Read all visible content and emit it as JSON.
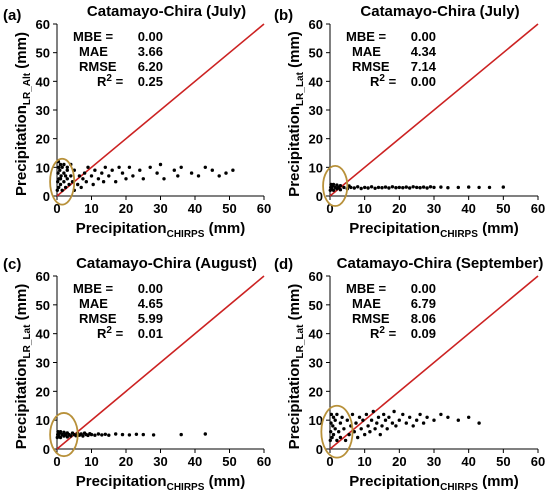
{
  "chart_data": [
    {
      "type": "scatter",
      "panel_label": "(a)",
      "title": "Catamayo-Chira (July)",
      "xlabel": "Precipitation",
      "xlabel_sub": "CHIRPS",
      "xlabel_unit": " (mm)",
      "ylabel": "Precipitation",
      "ylabel_sub": "LR_Alt",
      "ylabel_unit": " (mm)",
      "xlim": [
        0,
        60
      ],
      "ylim": [
        0,
        60
      ],
      "xticks": [
        0,
        10,
        20,
        30,
        40,
        50,
        60
      ],
      "yticks": [
        0,
        10,
        20,
        30,
        40,
        50,
        60
      ],
      "stats": [
        {
          "label": "MBE =",
          "value": "0.00"
        },
        {
          "label": "MAE",
          "value": "3.66"
        },
        {
          "label": "RMSE",
          "value": "6.20"
        },
        {
          "label": "R",
          "sup": "2",
          "eq": " =",
          "value": "0.25"
        }
      ],
      "ellipse": {
        "cx": 1.5,
        "cy": 5,
        "rx": 3.5,
        "ry": 8
      },
      "line": {
        "x": [
          0,
          60
        ],
        "y": [
          0,
          60
        ],
        "color": "#cc2222"
      },
      "series": [
        {
          "color": "#000000",
          "points": [
            [
              0.1,
              2
            ],
            [
              0.2,
              5
            ],
            [
              0.3,
              8
            ],
            [
              0.4,
              12
            ],
            [
              0.5,
              3
            ],
            [
              0.6,
              6
            ],
            [
              0.8,
              9
            ],
            [
              1,
              4
            ],
            [
              1,
              11
            ],
            [
              1.2,
              7
            ],
            [
              1.5,
              2
            ],
            [
              1.5,
              10
            ],
            [
              2,
              5
            ],
            [
              2,
              8
            ],
            [
              2.5,
              3
            ],
            [
              3,
              6
            ],
            [
              3,
              9
            ],
            [
              3.5,
              4
            ],
            [
              4,
              7
            ],
            [
              4.5,
              5
            ],
            [
              5,
              2
            ],
            [
              5,
              9
            ],
            [
              6,
              4
            ],
            [
              6.5,
              7
            ],
            [
              7,
              3
            ],
            [
              7.5,
              6
            ],
            [
              8,
              8
            ],
            [
              8.5,
              5
            ],
            [
              9,
              10
            ],
            [
              10,
              7
            ],
            [
              10.5,
              4
            ],
            [
              11,
              9
            ],
            [
              12,
              6
            ],
            [
              13,
              8
            ],
            [
              13.5,
              5
            ],
            [
              14,
              10
            ],
            [
              15,
              7
            ],
            [
              16,
              9
            ],
            [
              17,
              5
            ],
            [
              18,
              10
            ],
            [
              19,
              8
            ],
            [
              20,
              6
            ],
            [
              21,
              10
            ],
            [
              22,
              7
            ],
            [
              24,
              9
            ],
            [
              25,
              6
            ],
            [
              27,
              10
            ],
            [
              29,
              8
            ],
            [
              30,
              11
            ],
            [
              31,
              6
            ],
            [
              34,
              9
            ],
            [
              35,
              7
            ],
            [
              36,
              10
            ],
            [
              39,
              8
            ],
            [
              41,
              7
            ],
            [
              43,
              10
            ],
            [
              45,
              9
            ],
            [
              47,
              7
            ],
            [
              49,
              8
            ],
            [
              51,
              9
            ],
            [
              2,
              11
            ],
            [
              3,
              10
            ],
            [
              4,
              11
            ],
            [
              1,
              6
            ],
            [
              0.5,
              10
            ],
            [
              2.5,
              7
            ]
          ]
        }
      ]
    },
    {
      "type": "scatter",
      "panel_label": "(b)",
      "title": "Catamayo-Chira (July)",
      "xlabel": "Precipitation",
      "xlabel_sub": "CHIRPS",
      "xlabel_unit": " (mm)",
      "ylabel": "Precipitation",
      "ylabel_sub": "LR_Lat",
      "ylabel_unit": " (mm)",
      "xlim": [
        0,
        60
      ],
      "ylim": [
        0,
        60
      ],
      "xticks": [
        0,
        10,
        20,
        30,
        40,
        50,
        60
      ],
      "yticks": [
        0,
        10,
        20,
        30,
        40,
        50,
        60
      ],
      "stats": [
        {
          "label": "MBE =",
          "value": "0.00"
        },
        {
          "label": "MAE",
          "value": "4.34"
        },
        {
          "label": "RMSE",
          "value": "7.14"
        },
        {
          "label": "R",
          "sup": "2",
          "eq": " =",
          "value": "0.00"
        }
      ],
      "ellipse": {
        "cx": 1.5,
        "cy": 3.5,
        "rx": 3.5,
        "ry": 7
      },
      "line": {
        "x": [
          0,
          60
        ],
        "y": [
          0,
          60
        ],
        "color": "#cc2222"
      },
      "series": [
        {
          "color": "#000000",
          "points": [
            [
              0.1,
              2
            ],
            [
              0.2,
              3
            ],
            [
              0.3,
              4
            ],
            [
              0.5,
              2.5
            ],
            [
              0.7,
              3.5
            ],
            [
              1,
              2
            ],
            [
              1,
              4
            ],
            [
              1.5,
              3
            ],
            [
              2,
              2.5
            ],
            [
              2,
              3.8
            ],
            [
              2.5,
              3
            ],
            [
              3,
              2.2
            ],
            [
              3,
              3.6
            ],
            [
              4,
              3
            ],
            [
              5,
              2.5
            ],
            [
              5.5,
              3.5
            ],
            [
              6,
              3
            ],
            [
              7,
              2.8
            ],
            [
              8,
              3.2
            ],
            [
              9,
              2.6
            ],
            [
              10,
              3
            ],
            [
              11,
              2.8
            ],
            [
              12,
              3.2
            ],
            [
              13,
              2.7
            ],
            [
              14,
              3
            ],
            [
              15,
              2.9
            ],
            [
              16,
              3.1
            ],
            [
              17,
              2.8
            ],
            [
              18,
              3.2
            ],
            [
              19,
              2.9
            ],
            [
              20,
              3
            ],
            [
              21,
              2.9
            ],
            [
              22,
              3.1
            ],
            [
              23,
              2.8
            ],
            [
              24,
              3.2
            ],
            [
              25,
              3
            ],
            [
              26,
              2.9
            ],
            [
              27,
              3.1
            ],
            [
              28,
              2.8
            ],
            [
              29,
              3.2
            ],
            [
              30,
              3
            ],
            [
              32,
              3.1
            ],
            [
              34,
              2.9
            ],
            [
              37,
              3
            ],
            [
              40,
              3.1
            ],
            [
              43,
              3
            ],
            [
              46,
              3
            ],
            [
              50,
              3.1
            ]
          ]
        }
      ]
    },
    {
      "type": "scatter",
      "panel_label": "(c)",
      "title": "Catamayo-Chira (August)",
      "xlabel": "Precipitation",
      "xlabel_sub": "CHIRPS",
      "xlabel_unit": " (mm)",
      "ylabel": "Precipitation",
      "ylabel_sub": "LR_Lat",
      "ylabel_unit": " (mm)",
      "xlim": [
        0,
        60
      ],
      "ylim": [
        0,
        60
      ],
      "xticks": [
        0,
        10,
        20,
        30,
        40,
        50,
        60
      ],
      "yticks": [
        0,
        10,
        20,
        30,
        40,
        50,
        60
      ],
      "stats": [
        {
          "label": "MBE =",
          "value": "0.00"
        },
        {
          "label": "MAE",
          "value": "4.65"
        },
        {
          "label": "RMSE",
          "value": "5.99"
        },
        {
          "label": "R",
          "sup": "2",
          "eq": " =",
          "value": "0.01"
        }
      ],
      "ellipse": {
        "cx": 2,
        "cy": 5,
        "rx": 4,
        "ry": 7.5
      },
      "line": {
        "x": [
          0,
          60
        ],
        "y": [
          0,
          60
        ],
        "color": "#cc2222"
      },
      "series": [
        {
          "color": "#000000",
          "points": [
            [
              0.1,
              4
            ],
            [
              0.2,
              5
            ],
            [
              0.3,
              6
            ],
            [
              0.5,
              4.5
            ],
            [
              0.7,
              5.5
            ],
            [
              1,
              4
            ],
            [
              1,
              6
            ],
            [
              1.5,
              5
            ],
            [
              2,
              4.5
            ],
            [
              2,
              5.8
            ],
            [
              2.5,
              5
            ],
            [
              3,
              4.2
            ],
            [
              3,
              5.6
            ],
            [
              3.5,
              5
            ],
            [
              4,
              4.5
            ],
            [
              4.5,
              5.5
            ],
            [
              5,
              5
            ],
            [
              5.5,
              4.6
            ],
            [
              6,
              5.4
            ],
            [
              6.5,
              4.8
            ],
            [
              7,
              5.2
            ],
            [
              7.5,
              4.5
            ],
            [
              8,
              5.5
            ],
            [
              8.5,
              5
            ],
            [
              9,
              4.7
            ],
            [
              9.5,
              5.3
            ],
            [
              10,
              5
            ],
            [
              11,
              4.8
            ],
            [
              12,
              5.2
            ],
            [
              13,
              4.9
            ],
            [
              14,
              5.1
            ],
            [
              15,
              4.8
            ],
            [
              17,
              5.2
            ],
            [
              19,
              5
            ],
            [
              21,
              4.9
            ],
            [
              23,
              5.1
            ],
            [
              25,
              5
            ],
            [
              28,
              4.9
            ],
            [
              36,
              5
            ],
            [
              43,
              5.2
            ]
          ]
        }
      ]
    },
    {
      "type": "scatter",
      "panel_label": "(d)",
      "title": "Catamayo-Chira (September)",
      "xlabel": "Precipitation",
      "xlabel_sub": "CHIRPS",
      "xlabel_unit": " (mm)",
      "ylabel": "Precipitation",
      "ylabel_sub": "LR_Lat",
      "ylabel_unit": " (mm)",
      "xlim": [
        0,
        60
      ],
      "ylim": [
        0,
        60
      ],
      "xticks": [
        0,
        10,
        20,
        30,
        40,
        50,
        60
      ],
      "yticks": [
        0,
        10,
        20,
        30,
        40,
        50,
        60
      ],
      "stats": [
        {
          "label": "MBE =",
          "value": "0.00"
        },
        {
          "label": "MAE",
          "value": "6.79"
        },
        {
          "label": "RMSE",
          "value": "8.06"
        },
        {
          "label": "R",
          "sup": "2",
          "eq": " =",
          "value": "0.09"
        }
      ],
      "ellipse": {
        "cx": 2,
        "cy": 6,
        "rx": 4.5,
        "ry": 9
      },
      "line": {
        "x": [
          0,
          60
        ],
        "y": [
          0,
          60
        ],
        "color": "#cc2222"
      },
      "series": [
        {
          "color": "#000000",
          "points": [
            [
              0.1,
              3
            ],
            [
              0.2,
              6
            ],
            [
              0.3,
              9
            ],
            [
              0.4,
              12
            ],
            [
              0.6,
              4
            ],
            [
              0.8,
              8
            ],
            [
              1,
              11
            ],
            [
              1,
              5
            ],
            [
              1.5,
              7
            ],
            [
              1.5,
              10
            ],
            [
              2,
              3
            ],
            [
              2,
              12
            ],
            [
              2.5,
              6
            ],
            [
              3,
              9
            ],
            [
              3,
              4
            ],
            [
              3.5,
              11
            ],
            [
              4,
              7
            ],
            [
              4.5,
              3
            ],
            [
              5,
              10
            ],
            [
              5.5,
              5
            ],
            [
              6,
              8
            ],
            [
              6.5,
              12
            ],
            [
              7,
              6
            ],
            [
              7.5,
              9
            ],
            [
              8,
              4
            ],
            [
              8.5,
              11
            ],
            [
              9,
              7
            ],
            [
              9.5,
              10
            ],
            [
              10,
              5
            ],
            [
              10.5,
              12
            ],
            [
              11,
              8
            ],
            [
              11.5,
              6
            ],
            [
              12,
              10
            ],
            [
              12.5,
              13
            ],
            [
              13,
              7
            ],
            [
              13.5,
              9
            ],
            [
              14,
              11
            ],
            [
              14.5,
              5
            ],
            [
              15,
              8
            ],
            [
              15.5,
              12
            ],
            [
              16,
              10
            ],
            [
              16.5,
              7
            ],
            [
              17,
              11
            ],
            [
              18,
              9
            ],
            [
              18.5,
              13
            ],
            [
              19,
              8
            ],
            [
              20,
              10
            ],
            [
              21,
              12
            ],
            [
              22,
              9
            ],
            [
              23,
              11
            ],
            [
              24,
              8
            ],
            [
              25,
              10
            ],
            [
              26,
              12
            ],
            [
              27,
              9
            ],
            [
              28,
              11
            ],
            [
              30,
              10
            ],
            [
              32,
              12
            ],
            [
              34,
              11
            ],
            [
              37,
              10
            ],
            [
              40,
              11
            ],
            [
              43,
              9
            ]
          ]
        }
      ]
    }
  ]
}
